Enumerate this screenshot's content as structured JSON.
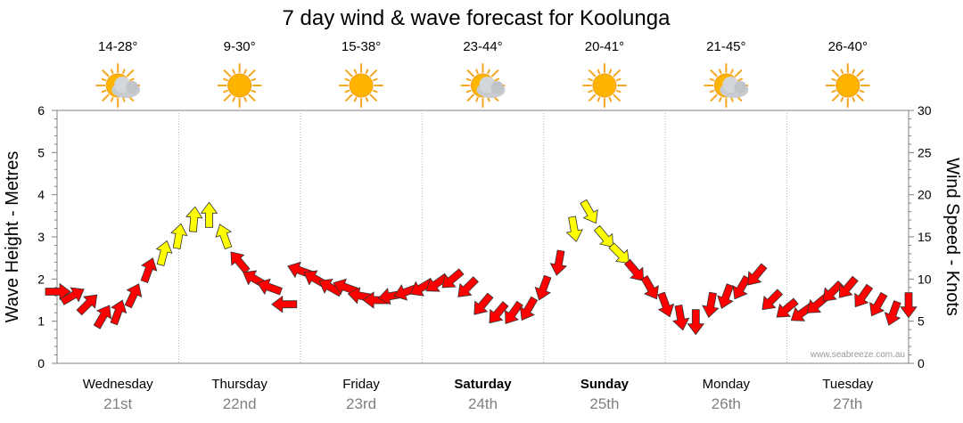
{
  "chart_data": {
    "type": "line",
    "title": "7 day wind & wave forecast for Koolunga",
    "ylabel_left": "Wave Height - Metres",
    "ylabel_right": "Wind Speed - Knots",
    "ylim_left": [
      0,
      6
    ],
    "ylim_right": [
      0,
      30
    ],
    "left_ticks": [
      "0",
      "1",
      "2",
      "3",
      "4",
      "5",
      "6"
    ],
    "right_ticks": [
      "0",
      "5",
      "10",
      "15",
      "20",
      "25",
      "30"
    ],
    "grid": true,
    "credit": "www.seabreeze.com.au",
    "days": [
      {
        "day": "Wednesday",
        "date": "21st",
        "temp": "14-28°",
        "weather": "partly-cloudy",
        "weekend": false
      },
      {
        "day": "Thursday",
        "date": "22nd",
        "temp": "9-30°",
        "weather": "sunny",
        "weekend": false
      },
      {
        "day": "Friday",
        "date": "23rd",
        "temp": "15-38°",
        "weather": "sunny",
        "weekend": false
      },
      {
        "day": "Saturday",
        "date": "24th",
        "temp": "23-44°",
        "weather": "partly-cloudy",
        "weekend": true
      },
      {
        "day": "Sunday",
        "date": "25th",
        "temp": "20-41°",
        "weather": "sunny",
        "weekend": true
      },
      {
        "day": "Monday",
        "date": "26th",
        "temp": "21-45°",
        "weather": "partly-cloudy",
        "weekend": false
      },
      {
        "day": "Tuesday",
        "date": "27th",
        "temp": "26-40°",
        "weather": "sunny",
        "weekend": false
      }
    ],
    "colors": {
      "wind_strong": "#ffff00",
      "wind_moderate": "#ff0000",
      "arrow_outline": "#333333",
      "grid": "#b0b0b0"
    },
    "series": [
      {
        "name": "Wind Speed",
        "unit": "knots",
        "x_hours": [
          0,
          3,
          6,
          9,
          12,
          15,
          18,
          21,
          24,
          27,
          30,
          33,
          36,
          39,
          42,
          45,
          48,
          51,
          54,
          57,
          60,
          63,
          66,
          69,
          72,
          75,
          78,
          81,
          84,
          87,
          90,
          93,
          96,
          99,
          102,
          105,
          108,
          111,
          114,
          117,
          120,
          123,
          126,
          129,
          132,
          135,
          138,
          141,
          144,
          147,
          150,
          153,
          156,
          159,
          162,
          165,
          168
        ],
        "values": [
          8.5,
          8,
          7,
          5.5,
          6,
          8,
          11,
          13,
          15,
          17,
          17.5,
          15,
          12,
          10,
          9,
          7,
          11,
          10,
          9,
          9,
          8,
          7.5,
          8,
          8.5,
          9,
          9.5,
          10,
          9,
          7,
          6,
          6,
          6.5,
          9,
          12,
          16,
          18,
          15,
          13,
          11,
          9,
          7,
          5.5,
          5,
          7,
          8,
          9,
          10.5,
          7.5,
          6.5,
          6,
          7,
          8.5,
          9,
          8,
          7,
          6,
          7
        ],
        "direction_deg": [
          90,
          60,
          45,
          30,
          20,
          25,
          20,
          15,
          10,
          5,
          0,
          340,
          320,
          300,
          290,
          270,
          290,
          300,
          300,
          290,
          280,
          270,
          260,
          250,
          240,
          235,
          230,
          225,
          220,
          220,
          215,
          210,
          200,
          190,
          170,
          150,
          140,
          135,
          140,
          150,
          160,
          170,
          180,
          190,
          200,
          210,
          220,
          225,
          230,
          235,
          230,
          225,
          220,
          215,
          210,
          200,
          180
        ]
      }
    ]
  }
}
